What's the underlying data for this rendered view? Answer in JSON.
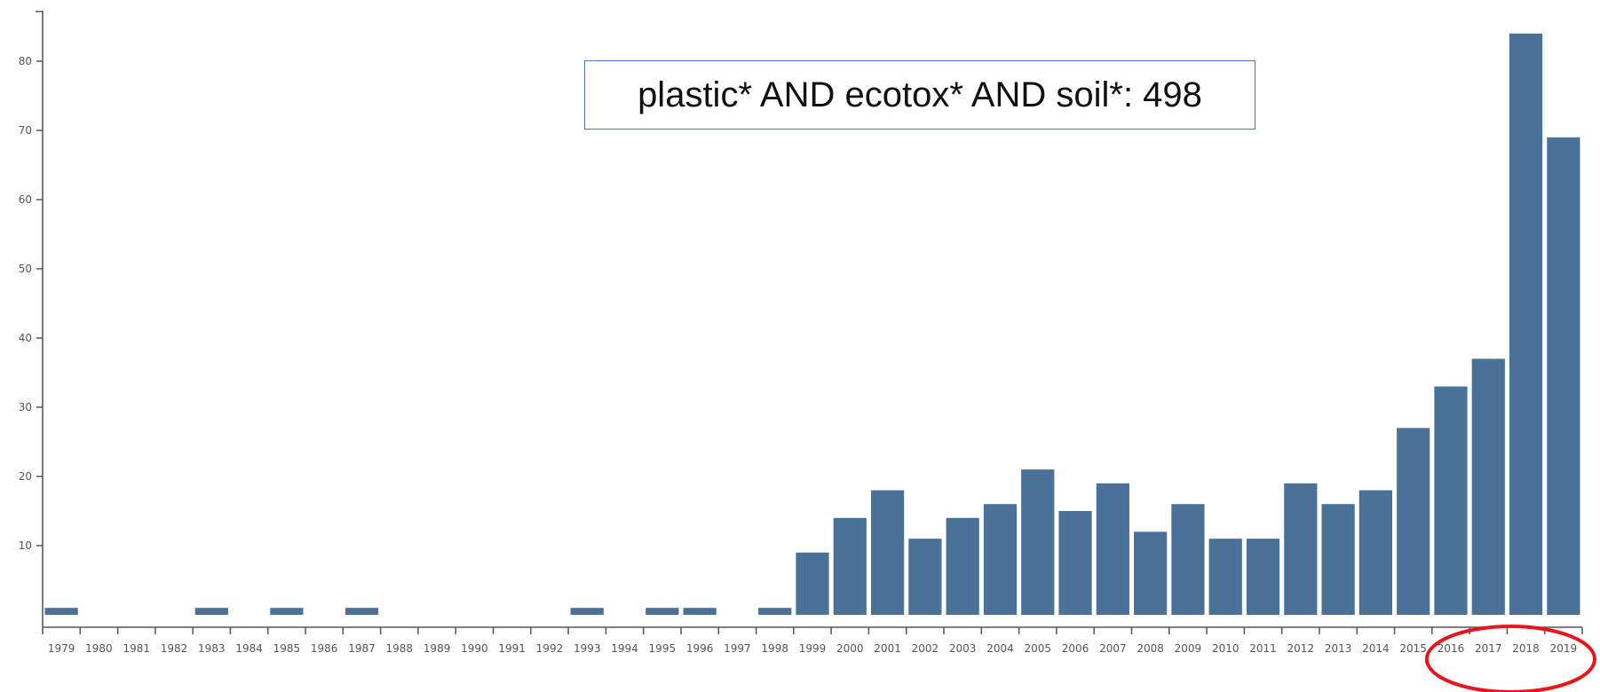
{
  "annotation": {
    "query": "plastic* AND ecotox* AND soil*: 498"
  },
  "colors": {
    "bar": "#4b7199",
    "axis": "#555555",
    "highlight_ellipse": "#e8161c",
    "box_border": "#4a78b5"
  },
  "chart_data": {
    "type": "bar",
    "title": "",
    "xlabel": "",
    "ylabel": "",
    "categories": [
      "1979",
      "1980",
      "1981",
      "1982",
      "1983",
      "1984",
      "1985",
      "1986",
      "1987",
      "1988",
      "1989",
      "1990",
      "1991",
      "1992",
      "1993",
      "1994",
      "1995",
      "1996",
      "1997",
      "1998",
      "1999",
      "2000",
      "2001",
      "2002",
      "2003",
      "2004",
      "2005",
      "2006",
      "2007",
      "2008",
      "2009",
      "2010",
      "2011",
      "2012",
      "2013",
      "2014",
      "2015",
      "2016",
      "2017",
      "2018",
      "2019"
    ],
    "values": [
      1,
      0,
      0,
      0,
      1,
      0,
      1,
      0,
      1,
      0,
      0,
      0,
      0,
      0,
      1,
      0,
      1,
      1,
      0,
      1,
      9,
      14,
      18,
      11,
      14,
      16,
      21,
      15,
      19,
      12,
      16,
      11,
      11,
      19,
      16,
      18,
      27,
      33,
      37,
      84,
      69
    ],
    "yticks": [
      10,
      20,
      30,
      40,
      50,
      60,
      70,
      80
    ],
    "ylim": [
      -2,
      88
    ],
    "grid": false,
    "highlight": [
      "2016",
      "2017",
      "2018",
      "2019"
    ]
  }
}
